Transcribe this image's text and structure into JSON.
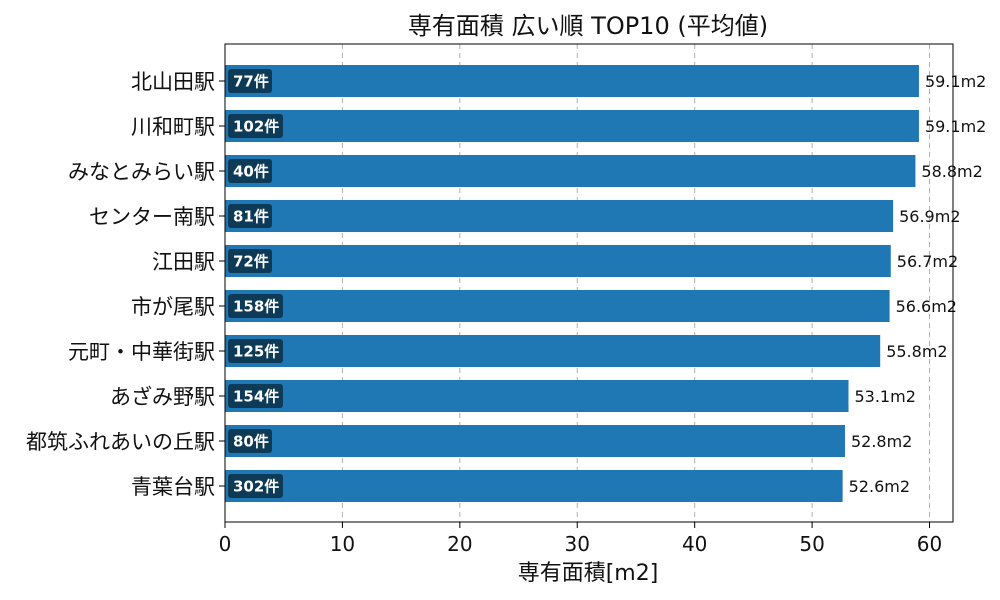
{
  "chart_data": {
    "type": "bar",
    "orientation": "horizontal",
    "title": "専有面積 広い順 TOP10 (平均値)",
    "xlabel": "専有面積[m2]",
    "ylabel": "",
    "xlim": [
      0,
      62
    ],
    "xticks": [
      0,
      10,
      20,
      30,
      40,
      50,
      60
    ],
    "grid": "vertical-dashed",
    "bar_color": "#1f77b4",
    "count_badge_color": "#0d3b57",
    "value_suffix": "m2",
    "count_suffix": "件",
    "categories": [
      "北山田駅",
      "川和町駅",
      "みなとみらい駅",
      "センター南駅",
      "江田駅",
      "市が尾駅",
      "元町・中華街駅",
      "あざみ野駅",
      "都筑ふれあいの丘駅",
      "青葉台駅"
    ],
    "values": [
      59.1,
      59.1,
      58.8,
      56.9,
      56.7,
      56.6,
      55.8,
      53.1,
      52.8,
      52.6
    ],
    "value_labels": [
      "59.1m2",
      "59.1m2",
      "58.8m2",
      "56.9m2",
      "56.7m2",
      "56.6m2",
      "55.8m2",
      "53.1m2",
      "52.8m2",
      "52.6m2"
    ],
    "counts": [
      77,
      102,
      40,
      81,
      72,
      158,
      125,
      154,
      80,
      302
    ],
    "count_labels": [
      "77件",
      "102件",
      "40件",
      "81件",
      "72件",
      "158件",
      "125件",
      "154件",
      "80件",
      "302件"
    ]
  }
}
